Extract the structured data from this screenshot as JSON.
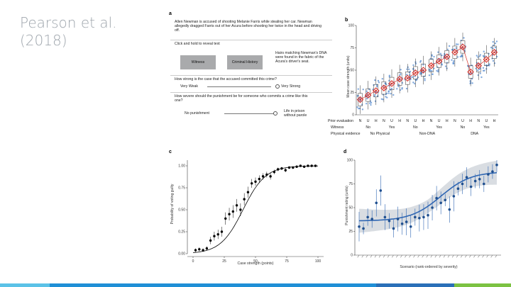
{
  "slide": {
    "title_line1": "Pearson et al.",
    "title_line2": "(2018)",
    "footer_colors": [
      "#5bc2e7",
      "#1f8fd6",
      "#2a6fb8",
      "#7cc242"
    ]
  },
  "panel_a": {
    "label": "a",
    "scenario": "Allen Newman is accused of shooting Melanie Farris while stealing her car. Newman allegedly dragged Farris out of her Acura before shooting her twice in the head and driving off.",
    "instruction": "Click and hold to reveal text",
    "witness_button": "Witness",
    "criminal_button": "Criminal History",
    "dna_text": "Hairs matching Newman's DNA were found in the fabric of the Acura's driver's seat.",
    "q1": "How strong is the case that the accused committed this crime?",
    "q1_left": "Very Weak",
    "q1_right": "Very Strong",
    "q2": "How severe should the punishment be for someone who commits a crime like this one?",
    "q2_left": "No punishment",
    "q2_right": "Life in prison without parole"
  },
  "panel_b": {
    "label": "b",
    "ylabel": "Mean case strength (units)",
    "row1_label": "Prior evaluation",
    "row2_label": "Witness",
    "row3_label": "Physical evidence",
    "prior_codes": [
      "N",
      "U",
      "H",
      "N",
      "U",
      "H",
      "N",
      "U",
      "H",
      "N",
      "U",
      "H",
      "N",
      "U",
      "H",
      "N",
      "U",
      "H"
    ],
    "witness_values": [
      "No",
      "Yes",
      "No",
      "Yes",
      "No",
      "Yes"
    ],
    "physical_values": [
      "No Physical",
      "Non-DNA",
      "DNA"
    ]
  },
  "panel_c": {
    "label": "c",
    "ylabel": "Probability of voting guilty",
    "xlabel": "Case strength (points)"
  },
  "panel_d": {
    "label": "d",
    "ylabel": "Punishment rating (units)",
    "xlabel": "Scenario (rank-ordered by severity)"
  },
  "chart_data": [
    {
      "type": "scatter",
      "title": "b",
      "ylim": [
        0,
        100
      ],
      "yticks": [
        "0",
        "25",
        "50",
        "75",
        "100"
      ],
      "categories": [
        "N",
        "U",
        "H",
        "N",
        "U",
        "H",
        "N",
        "U",
        "H",
        "N",
        "U",
        "H",
        "N",
        "U",
        "H",
        "N",
        "U",
        "H"
      ],
      "series": [
        {
          "name": "Mean case strength",
          "values": [
            17,
            22,
            27,
            30,
            35,
            40,
            41,
            47,
            50,
            55,
            60,
            65,
            70,
            76,
            48,
            55,
            62,
            70
          ]
        }
      ]
    },
    {
      "type": "scatter",
      "title": "c",
      "xlim": [
        0,
        100
      ],
      "ylim": [
        0,
        1
      ],
      "xticks": [
        "0",
        "25",
        "50",
        "75",
        "100"
      ],
      "yticks": [
        "0.00",
        "0.25",
        "0.50",
        "0.75",
        "1.00"
      ],
      "x": [
        2,
        5,
        8,
        11,
        14,
        17,
        20,
        23,
        26,
        29,
        32,
        35,
        38,
        41,
        44,
        47,
        50,
        53,
        56,
        59,
        62,
        65,
        68,
        71,
        74,
        77,
        80,
        83,
        86,
        89,
        92,
        95,
        98
      ],
      "values": [
        0.04,
        0.05,
        0.04,
        0.06,
        0.15,
        0.2,
        0.22,
        0.25,
        0.4,
        0.45,
        0.48,
        0.55,
        0.5,
        0.62,
        0.7,
        0.8,
        0.82,
        0.85,
        0.88,
        0.9,
        0.88,
        0.93,
        0.96,
        0.97,
        0.95,
        0.98,
        0.98,
        0.99,
        1.0,
        0.99,
        1.0,
        1.0,
        1.0
      ]
    },
    {
      "type": "scatter",
      "title": "d",
      "ylim": [
        0,
        100
      ],
      "yticks": [
        "0",
        "25",
        "50",
        "75",
        "100"
      ],
      "x": [
        1,
        2,
        3,
        4,
        5,
        6,
        7,
        8,
        9,
        10,
        11,
        12,
        13,
        14,
        15,
        16,
        17,
        18,
        19,
        20,
        21,
        22,
        23,
        24,
        25,
        26,
        27,
        28,
        29,
        30,
        31,
        32,
        33
      ],
      "values": [
        30,
        28,
        40,
        38,
        55,
        68,
        40,
        36,
        28,
        38,
        33,
        35,
        30,
        40,
        39,
        40,
        42,
        50,
        60,
        55,
        58,
        48,
        62,
        70,
        75,
        82,
        72,
        78,
        80,
        75,
        85,
        88,
        95
      ]
    }
  ]
}
